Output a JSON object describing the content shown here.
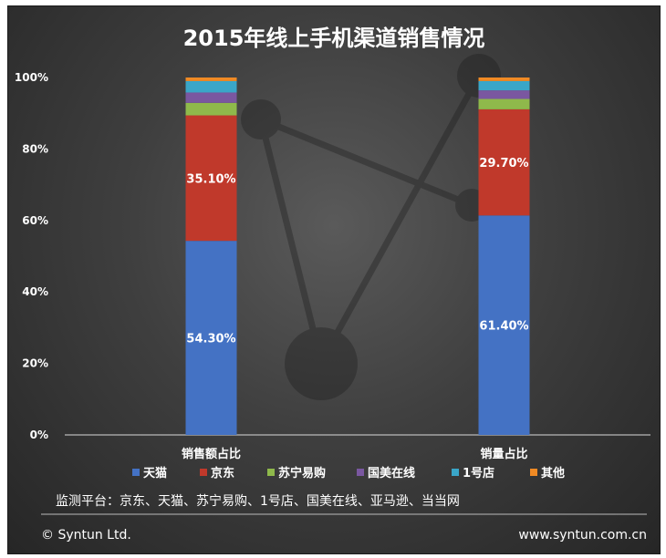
{
  "chart_data": {
    "type": "bar",
    "stacked": true,
    "title": "2015年线上手机渠道销售情况",
    "categories": [
      "销售额占比",
      "销量占比"
    ],
    "ylim": [
      0,
      100
    ],
    "yticks": [
      "0%",
      "20%",
      "40%",
      "60%",
      "80%",
      "100%"
    ],
    "series": [
      {
        "name": "天猫",
        "color": "#4472c4",
        "values": [
          54.3,
          61.4
        ],
        "labels": [
          "54.30%",
          "61.40%"
        ]
      },
      {
        "name": "京东",
        "color": "#c0392b",
        "values": [
          35.1,
          29.7
        ],
        "labels": [
          "35.10%",
          "29.70%"
        ]
      },
      {
        "name": "苏宁易购",
        "color": "#8fb94b",
        "values": [
          3.5,
          2.9
        ],
        "labels": [
          "",
          ""
        ]
      },
      {
        "name": "国美在线",
        "color": "#7a57a0",
        "values": [
          2.9,
          2.4
        ],
        "labels": [
          "",
          ""
        ]
      },
      {
        "name": "1号店",
        "color": "#3aa6c8",
        "values": [
          3.2,
          2.6
        ],
        "labels": [
          "",
          ""
        ]
      },
      {
        "name": "其他",
        "color": "#f08a24",
        "values": [
          1.0,
          1.0
        ],
        "labels": [
          "",
          ""
        ]
      }
    ],
    "legend_position": "bottom"
  },
  "note": "监测平台：京东、天猫、苏宁易购、1号店、国美在线、亚马逊、当当网",
  "footer": {
    "copyright": "© Syntun Ltd.",
    "website": "www.syntun.com.cn"
  }
}
